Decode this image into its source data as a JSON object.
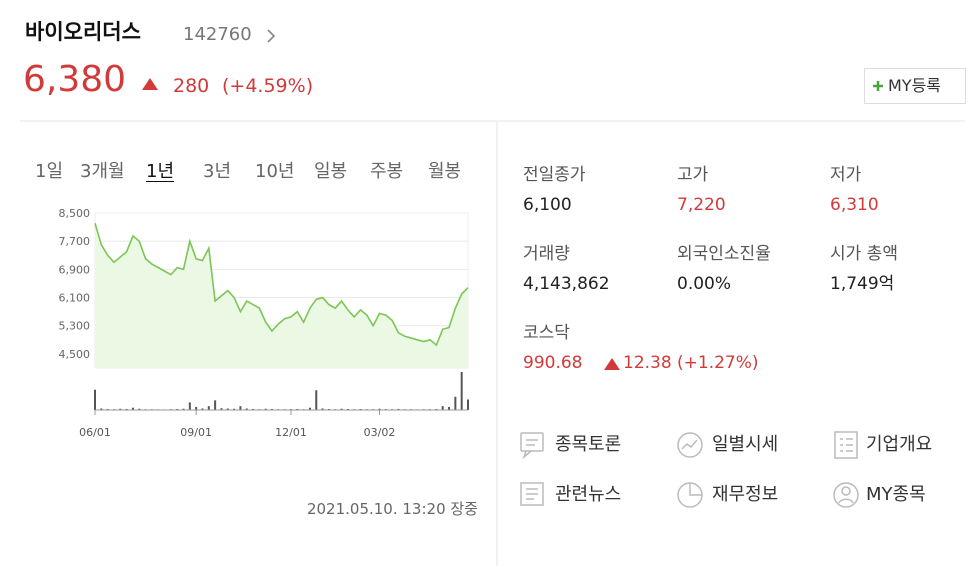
{
  "header": {
    "name": "바이오리더스",
    "code": "142760",
    "price": "6,380",
    "change": "280",
    "change_rate": "(+4.59%)",
    "add_button": "MY등록"
  },
  "tabs": {
    "items": [
      "1일",
      "3개월",
      "1년",
      "3년",
      "10년",
      "일봉",
      "주봉",
      "월봉"
    ],
    "active": "1년"
  },
  "chart_data": {
    "type": "line",
    "categories": [
      "06/01",
      null,
      null,
      null,
      null,
      null,
      null,
      null,
      null,
      null,
      null,
      null,
      null,
      null,
      null,
      null,
      "09/01",
      null,
      null,
      null,
      null,
      null,
      null,
      null,
      null,
      null,
      null,
      null,
      null,
      null,
      null,
      "12/01",
      null,
      null,
      null,
      null,
      null,
      null,
      null,
      null,
      null,
      null,
      null,
      null,
      null,
      "03/02",
      null,
      null,
      null,
      null,
      null,
      null,
      null,
      null,
      null,
      null,
      null,
      null,
      null,
      null
    ],
    "values": [
      8210,
      7600,
      7300,
      7100,
      7250,
      7400,
      7850,
      7700,
      7200,
      7050,
      6950,
      6850,
      6750,
      6950,
      6900,
      7700,
      7200,
      7150,
      7500,
      6000,
      6150,
      6300,
      6100,
      5700,
      6000,
      5900,
      5800,
      5400,
      5150,
      5350,
      5500,
      5550,
      5700,
      5400,
      5800,
      6050,
      6100,
      5900,
      5800,
      6000,
      5750,
      5550,
      5750,
      5600,
      5300,
      5650,
      5600,
      5450,
      5100,
      5000,
      4950,
      4900,
      4850,
      4900,
      4750,
      5200,
      5250,
      5800,
      6200,
      6380
    ],
    "volume": [
      8000000,
      600000,
      400000,
      300000,
      500000,
      400000,
      900000,
      500000,
      300000,
      300000,
      250000,
      250000,
      300000,
      400000,
      500000,
      3000000,
      1200000,
      600000,
      1500000,
      3800000,
      700000,
      600000,
      500000,
      1500000,
      600000,
      400000,
      300000,
      500000,
      400000,
      300000,
      300000,
      350000,
      400000,
      300000,
      900000,
      7800000,
      600000,
      400000,
      300000,
      500000,
      400000,
      300000,
      400000,
      300000,
      300000,
      500000,
      350000,
      300000,
      400000,
      300000,
      300000,
      250000,
      300000,
      300000,
      400000,
      1500000,
      1200000,
      5200000,
      15000000,
      4143862
    ],
    "ylim": [
      4100,
      8500
    ],
    "yticks": [
      {
        "value": 4500,
        "label": "4,500"
      },
      {
        "value": 5300,
        "label": "5,300"
      },
      {
        "value": 6100,
        "label": "6,100"
      },
      {
        "value": 6900,
        "label": "6,900"
      },
      {
        "value": 7700,
        "label": "7,700"
      },
      {
        "value": 8500,
        "label": "8,500"
      }
    ],
    "grid": true,
    "color": "#7cc557",
    "fill": "#ebf8e3"
  },
  "timestamp": "2021.05.10. 13:20 장중",
  "stats": [
    {
      "label": "전일종가",
      "value": "6,100",
      "color": "#222222"
    },
    {
      "label": "고가",
      "value": "7,220",
      "color": "#d23a3a"
    },
    {
      "label": "저가",
      "value": "6,310",
      "color": "#d23a3a"
    },
    {
      "label": "거래량",
      "value": "4,143,862",
      "color": "#222222"
    },
    {
      "label": "외국인소진율",
      "value": "0.00%",
      "color": "#222222"
    },
    {
      "label": "시가 총액",
      "value": "1,749억",
      "color": "#222222"
    }
  ],
  "index": {
    "label": "코스닥",
    "value": "990.68",
    "change": "12.38",
    "change_rate": "(+1.27%)"
  },
  "links": [
    "종목토론",
    "일별시세",
    "기업개요",
    "관련뉴스",
    "재무정보",
    "MY종목"
  ]
}
